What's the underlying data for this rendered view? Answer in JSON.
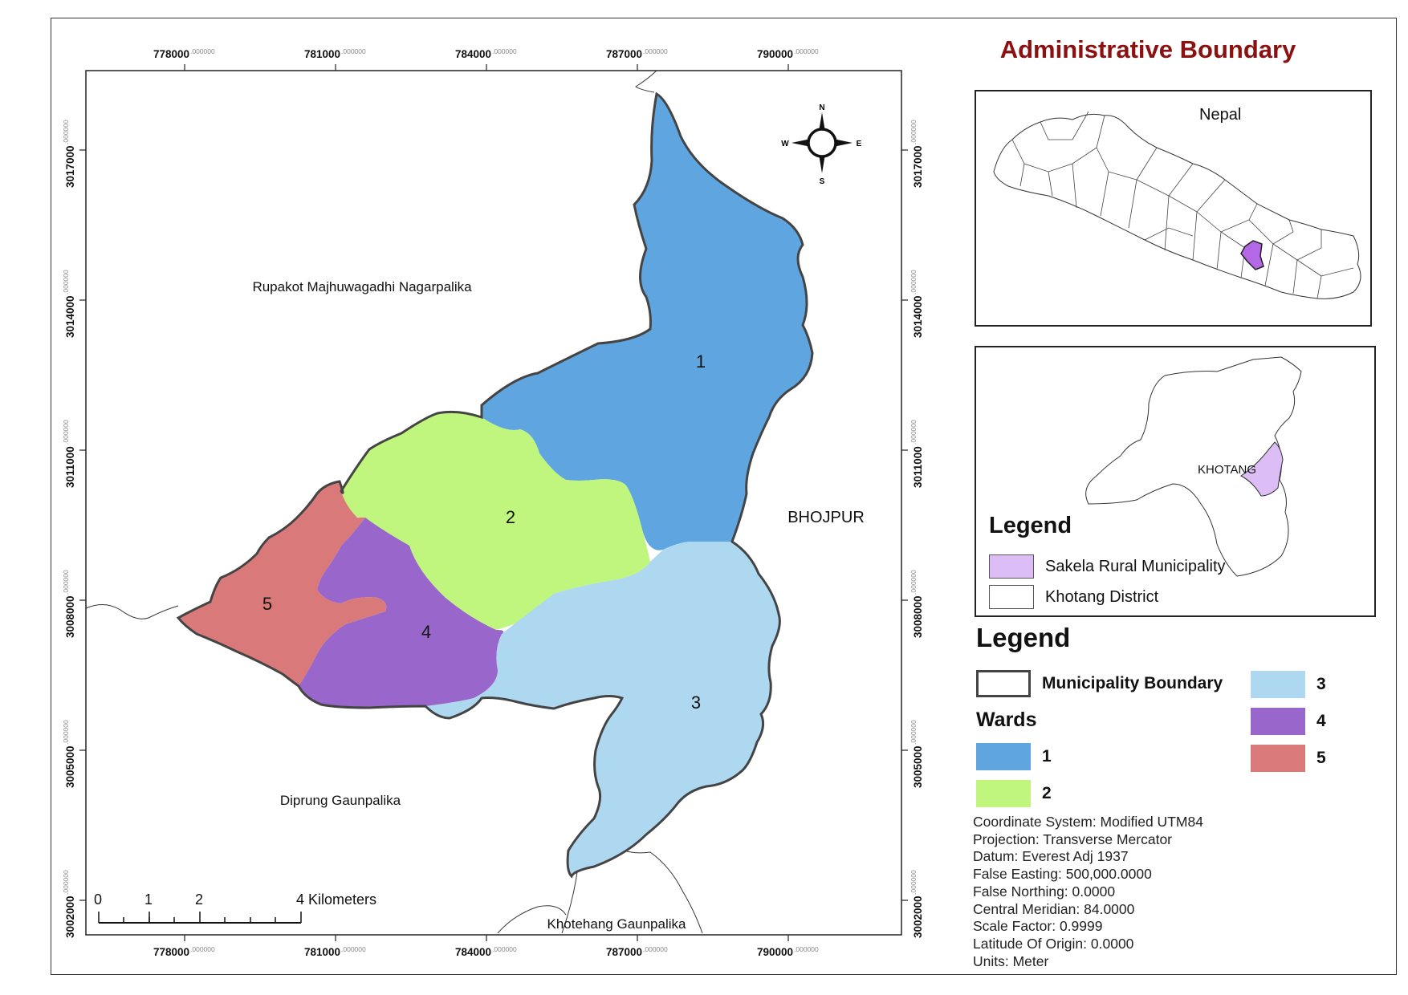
{
  "title": "Administrative Boundary",
  "map": {
    "x_ticks": [
      {
        "major": "778000",
        "minor": ".000000"
      },
      {
        "major": "781000",
        "minor": ".000000"
      },
      {
        "major": "784000",
        "minor": ".000000"
      },
      {
        "major": "787000",
        "minor": ".000000"
      },
      {
        "major": "790000",
        "minor": ".000000"
      }
    ],
    "y_ticks": [
      {
        "major": "3017000",
        "minor": ".000000"
      },
      {
        "major": "3014000",
        "minor": ".000000"
      },
      {
        "major": "3011000",
        "minor": ".000000"
      },
      {
        "major": "3008000",
        "minor": ".000000"
      },
      {
        "major": "3005000",
        "minor": ".000000"
      },
      {
        "major": "3002000",
        "minor": ".000000"
      }
    ],
    "neighbour_labels": {
      "north": "Rupakot Majhuwagadhi Nagarpalika",
      "east": "BHOJPUR",
      "south_west": "Diprung Gaunpalika",
      "south": "Khotehang Gaunpalika"
    },
    "ward_labels": [
      "1",
      "2",
      "3",
      "4",
      "5"
    ],
    "compass": {
      "n": "N",
      "s": "S",
      "e": "E",
      "w": "W"
    },
    "scalebar": {
      "labels": [
        "0",
        "1",
        "2",
        "4 Kilometers"
      ]
    }
  },
  "inset_nepal": {
    "label": "Nepal"
  },
  "inset_district": {
    "label": "KHOTANG",
    "legend_title": "Legend",
    "items": [
      {
        "label": "Sakela Rural Municipality",
        "color": "#dcbdf5"
      },
      {
        "label": "Khotang District",
        "color": "#ffffff"
      }
    ]
  },
  "legend": {
    "title": "Legend",
    "boundary_label": "Municipality Boundary",
    "wards_title": "Wards",
    "wards": [
      {
        "label": "1",
        "color": "#5fa6e0"
      },
      {
        "label": "2",
        "color": "#c0f57e"
      },
      {
        "label": "3",
        "color": "#add8f0"
      },
      {
        "label": "4",
        "color": "#9966cc"
      },
      {
        "label": "5",
        "color": "#d97979"
      }
    ]
  },
  "projection_info": [
    "Coordinate System: Modified UTM84",
    "Projection: Transverse Mercator",
    "Datum: Everest Adj 1937",
    "False Easting: 500,000.0000",
    "False Northing: 0.0000",
    "Central Meridian: 84.0000",
    "Scale Factor: 0.9999",
    "Latitude Of Origin: 0.0000",
    "Units: Meter"
  ]
}
